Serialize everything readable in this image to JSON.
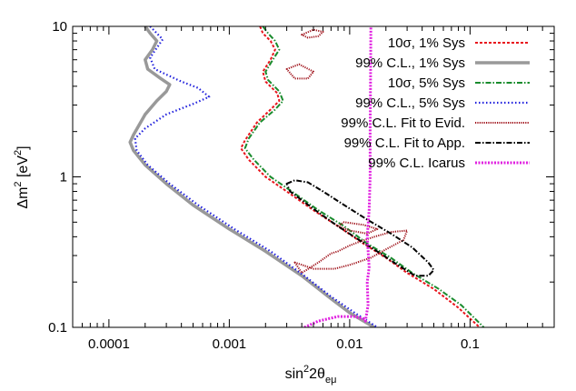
{
  "chart_data": {
    "type": "line",
    "x_scale": "log",
    "y_scale": "log",
    "xlim": [
      5e-05,
      0.5
    ],
    "ylim": [
      0.1,
      10
    ],
    "x_ticks": [
      {
        "value": 0.0001,
        "label": "0.0001"
      },
      {
        "value": 0.001,
        "label": "0.001"
      },
      {
        "value": 0.01,
        "label": "0.01"
      },
      {
        "value": 0.1,
        "label": "0.1"
      }
    ],
    "y_ticks": [
      {
        "value": 0.1,
        "label": "0.1"
      },
      {
        "value": 1,
        "label": "1"
      },
      {
        "value": 10,
        "label": "10"
      }
    ],
    "xlabel": {
      "base": "sin",
      "sup": "2",
      "mid": "2θ",
      "sub": "eμ"
    },
    "ylabel": {
      "base": "Δm",
      "sup": "2",
      "rest": " [eV",
      "sup2": "2",
      "end": "]"
    },
    "legend_position": "top-right",
    "series": [
      {
        "name": "10σ, 1% Sys",
        "color": "#e8141c",
        "dash": "3,2",
        "width": 2,
        "points": [
          [
            0.0018,
            10
          ],
          [
            0.0019,
            9
          ],
          [
            0.0022,
            8
          ],
          [
            0.0024,
            7
          ],
          [
            0.0022,
            6
          ],
          [
            0.0019,
            5
          ],
          [
            0.002,
            4.3
          ],
          [
            0.0025,
            3.6
          ],
          [
            0.0026,
            3.2
          ],
          [
            0.0022,
            2.8
          ],
          [
            0.0017,
            2.3
          ],
          [
            0.00135,
            1.75
          ],
          [
            0.00125,
            1.55
          ],
          [
            0.00145,
            1.3
          ],
          [
            0.002,
            1.0
          ],
          [
            0.003,
            0.8
          ],
          [
            0.005,
            0.6
          ],
          [
            0.008,
            0.47
          ],
          [
            0.013,
            0.36
          ],
          [
            0.02,
            0.29
          ],
          [
            0.03,
            0.23
          ],
          [
            0.05,
            0.18
          ],
          [
            0.08,
            0.135
          ],
          [
            0.12,
            0.1
          ]
        ]
      },
      {
        "name": "99% C.L., 1% Sys",
        "color": "#999999",
        "dash": "",
        "width": 3.5,
        "points": [
          [
            0.0002,
            10
          ],
          [
            0.00022,
            9
          ],
          [
            0.00025,
            8
          ],
          [
            0.00023,
            7
          ],
          [
            0.0002,
            6
          ],
          [
            0.00021,
            5.2
          ],
          [
            0.00027,
            4.5
          ],
          [
            0.00032,
            4.1
          ],
          [
            0.0003,
            3.7
          ],
          [
            0.00025,
            3.2
          ],
          [
            0.0002,
            2.6
          ],
          [
            0.00016,
            1.9
          ],
          [
            0.00015,
            1.7
          ],
          [
            0.00016,
            1.5
          ],
          [
            0.0002,
            1.2
          ],
          [
            0.0003,
            0.9
          ],
          [
            0.0005,
            0.65
          ],
          [
            0.001,
            0.45
          ],
          [
            0.002,
            0.32
          ],
          [
            0.004,
            0.22
          ],
          [
            0.007,
            0.155
          ],
          [
            0.01,
            0.125
          ],
          [
            0.016,
            0.1
          ]
        ]
      },
      {
        "name": "10σ, 5% Sys",
        "color": "#1a8c2e",
        "dash": "6,2,1.5,2",
        "width": 2,
        "points": [
          [
            0.0019,
            10
          ],
          [
            0.0021,
            9
          ],
          [
            0.0024,
            8
          ],
          [
            0.0026,
            7
          ],
          [
            0.0023,
            6
          ],
          [
            0.002,
            5
          ],
          [
            0.0021,
            4.4
          ],
          [
            0.0026,
            3.7
          ],
          [
            0.0028,
            3.2
          ],
          [
            0.0024,
            2.8
          ],
          [
            0.0018,
            2.3
          ],
          [
            0.00145,
            1.8
          ],
          [
            0.00135,
            1.55
          ],
          [
            0.0016,
            1.3
          ],
          [
            0.0022,
            1.0
          ],
          [
            0.0033,
            0.8
          ],
          [
            0.0055,
            0.6
          ],
          [
            0.009,
            0.47
          ],
          [
            0.014,
            0.36
          ],
          [
            0.022,
            0.29
          ],
          [
            0.033,
            0.23
          ],
          [
            0.055,
            0.18
          ],
          [
            0.085,
            0.14
          ],
          [
            0.13,
            0.1
          ]
        ]
      },
      {
        "name": "99% C.L., 5% Sys",
        "color": "#2222dd",
        "dash": "1.5,2.5",
        "width": 2.2,
        "points": [
          [
            0.00022,
            10
          ],
          [
            0.00025,
            9
          ],
          [
            0.00028,
            8.2
          ],
          [
            0.00025,
            7.2
          ],
          [
            0.00022,
            6.2
          ],
          [
            0.00024,
            5.2
          ],
          [
            0.0004,
            4.3
          ],
          [
            0.00055,
            3.9
          ],
          [
            0.00068,
            3.4
          ],
          [
            0.0005,
            3.05
          ],
          [
            0.0003,
            2.6
          ],
          [
            0.0002,
            2.1
          ],
          [
            0.000165,
            1.8
          ],
          [
            0.00017,
            1.5
          ],
          [
            0.00021,
            1.2
          ],
          [
            0.00032,
            0.9
          ],
          [
            0.00055,
            0.65
          ],
          [
            0.0011,
            0.45
          ],
          [
            0.0022,
            0.32
          ],
          [
            0.0042,
            0.22
          ],
          [
            0.007,
            0.16
          ],
          [
            0.011,
            0.125
          ],
          [
            0.017,
            0.1
          ]
        ]
      },
      {
        "name": "99% C.L. Fit to Evid.",
        "color": "#a0141c",
        "dash": "1.2,1.2",
        "width": 2,
        "closed": true,
        "points": [
          [
            0.004,
            8.8
          ],
          [
            0.005,
            9.5
          ],
          [
            0.006,
            9.2
          ],
          [
            0.0055,
            8.6
          ],
          [
            0.0045,
            8.4
          ],
          [
            0.004,
            8.8
          ]
        ]
      },
      {
        "name": "",
        "color": "#a0141c",
        "dash": "1.2,1.2",
        "width": 2,
        "closed": true,
        "points": [
          [
            0.003,
            5.2
          ],
          [
            0.0038,
            5.6
          ],
          [
            0.005,
            5.0
          ],
          [
            0.0045,
            4.5
          ],
          [
            0.0035,
            4.5
          ],
          [
            0.003,
            5.2
          ]
        ]
      },
      {
        "name": "",
        "color": "#a0141c",
        "dash": "1.2,1.2",
        "width": 2,
        "closed": true,
        "points": [
          [
            0.0035,
            0.27
          ],
          [
            0.004,
            0.23
          ],
          [
            0.0055,
            0.27
          ],
          [
            0.007,
            0.31
          ],
          [
            0.008,
            0.32
          ],
          [
            0.01,
            0.35
          ],
          [
            0.012,
            0.37
          ],
          [
            0.016,
            0.4
          ],
          [
            0.022,
            0.43
          ],
          [
            0.03,
            0.44
          ],
          [
            0.028,
            0.38
          ],
          [
            0.02,
            0.33
          ],
          [
            0.015,
            0.29
          ],
          [
            0.01,
            0.26
          ],
          [
            0.0075,
            0.245
          ],
          [
            0.005,
            0.245
          ],
          [
            0.0035,
            0.27
          ]
        ]
      },
      {
        "name": "",
        "color": "#a0141c",
        "dash": "1.2,1.2",
        "width": 2,
        "closed": true,
        "points": [
          [
            0.008,
            0.47
          ],
          [
            0.009,
            0.5
          ],
          [
            0.013,
            0.48
          ],
          [
            0.017,
            0.45
          ],
          [
            0.014,
            0.42
          ],
          [
            0.01,
            0.44
          ],
          [
            0.008,
            0.47
          ]
        ]
      },
      {
        "name": "99% C.L. Fit to App.",
        "color": "#000000",
        "dash": "6,2,1.5,2",
        "width": 2,
        "closed": true,
        "points": [
          [
            0.003,
            0.9
          ],
          [
            0.0035,
            0.95
          ],
          [
            0.0045,
            0.92
          ],
          [
            0.006,
            0.8
          ],
          [
            0.009,
            0.65
          ],
          [
            0.014,
            0.52
          ],
          [
            0.022,
            0.42
          ],
          [
            0.033,
            0.34
          ],
          [
            0.045,
            0.27
          ],
          [
            0.05,
            0.24
          ],
          [
            0.045,
            0.22
          ],
          [
            0.035,
            0.22
          ],
          [
            0.025,
            0.26
          ],
          [
            0.018,
            0.31
          ],
          [
            0.012,
            0.38
          ],
          [
            0.008,
            0.47
          ],
          [
            0.0055,
            0.58
          ],
          [
            0.004,
            0.7
          ],
          [
            0.0032,
            0.8
          ],
          [
            0.003,
            0.9
          ]
        ]
      },
      {
        "name": "99% C.L. Icarus",
        "color": "#e020e0",
        "dash": "2,1.5",
        "width": 3,
        "points": [
          [
            0.0042,
            0.1
          ],
          [
            0.0055,
            0.11
          ],
          [
            0.008,
            0.118
          ],
          [
            0.011,
            0.118
          ],
          [
            0.013,
            0.114
          ],
          [
            0.0135,
            0.11
          ],
          [
            0.0142,
            0.14
          ],
          [
            0.014,
            0.2
          ],
          [
            0.0145,
            0.25
          ],
          [
            0.014,
            0.4
          ],
          [
            0.0145,
            0.6
          ],
          [
            0.0148,
            1.0
          ],
          [
            0.0148,
            2.0
          ],
          [
            0.0149,
            4.0
          ],
          [
            0.015,
            10
          ]
        ]
      }
    ]
  }
}
